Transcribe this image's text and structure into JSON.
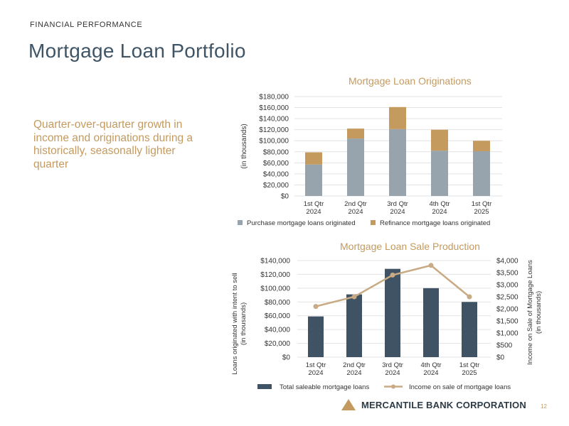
{
  "header": {
    "eyebrow": "FINANCIAL PERFORMANCE",
    "title": "Mortgage Loan Portfolio"
  },
  "tagline": "Quarter-over-quarter growth in income and originations during a historically, seasonally lighter quarter",
  "colors": {
    "gold": "#c49a5e",
    "slate": "#3f5566",
    "gray_bar": "#98a4ad",
    "dark_bar": "#3f5364",
    "line": "#c8aa84"
  },
  "chart_data": [
    {
      "type": "bar",
      "stacked": true,
      "title": "Mortgage Loan Originations",
      "ylabel": "(in thousands)",
      "ylim": [
        0,
        180000
      ],
      "yticks": [
        "$0",
        "$20,000",
        "$40,000",
        "$60,000",
        "$80,000",
        "$100,000",
        "$120,000",
        "$140,000",
        "$160,000",
        "$180,000"
      ],
      "categories": [
        [
          "1st Qtr",
          "2024"
        ],
        [
          "2nd Qtr",
          "2024"
        ],
        [
          "3rd Qtr",
          "2024"
        ],
        [
          "4th Qtr",
          "2024"
        ],
        [
          "1st Qtr",
          "2025"
        ]
      ],
      "series": [
        {
          "name": "Purchase mortgage loans originated",
          "values": [
            57000,
            104000,
            121000,
            82000,
            81000
          ],
          "color": "#98a4ad"
        },
        {
          "name": "Refinance mortgage loans originated",
          "values": [
            22000,
            18000,
            40000,
            38000,
            19000
          ],
          "color": "#c49a5e"
        }
      ],
      "grid": true,
      "legend": "bottom"
    },
    {
      "type": "bar",
      "title": "Mortgage Loan Sale Production",
      "ylabel": "Loans originated with intent to sell (in thousands)",
      "y2label": "Income on Sale of Mortgage Loans (in thousands)",
      "ylim": [
        0,
        140000
      ],
      "y2lim": [
        0,
        4000
      ],
      "yticks": [
        "$0",
        "$20,000",
        "$40,000",
        "$60,000",
        "$80,000",
        "$100,000",
        "$120,000",
        "$140,000"
      ],
      "y2ticks": [
        "$0",
        "$500",
        "$1,000",
        "$1,500",
        "$2,000",
        "$2,500",
        "$3,000",
        "$3,500",
        "$4,000"
      ],
      "categories": [
        [
          "1st Qtr",
          "2024"
        ],
        [
          "2nd Qtr",
          "2024"
        ],
        [
          "3rd Qtr",
          "2024"
        ],
        [
          "4th Qtr",
          "2024"
        ],
        [
          "1st Qtr",
          "2025"
        ]
      ],
      "series": [
        {
          "name": "Total saleable mortgage loans",
          "type": "bar",
          "axis": "left",
          "values": [
            59000,
            91000,
            128000,
            100000,
            80000
          ],
          "color": "#3f5364"
        },
        {
          "name": "Income on sale of mortgage loans",
          "type": "line",
          "axis": "right",
          "values": [
            2100,
            2500,
            3400,
            3800,
            2500
          ],
          "color": "#c8aa84"
        }
      ],
      "grid": true,
      "legend": "bottom"
    }
  ],
  "footer": {
    "company": "MERCANTILE BANK CORPORATION",
    "page": "12"
  }
}
